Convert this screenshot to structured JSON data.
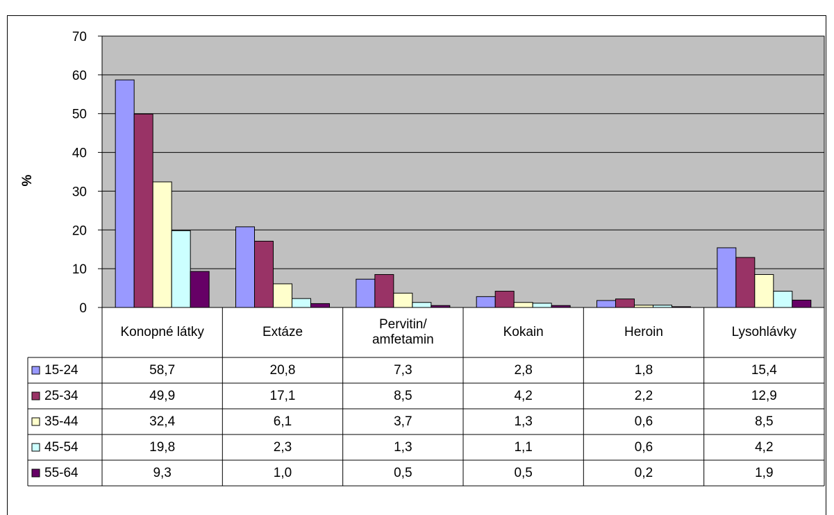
{
  "chart_data": {
    "type": "bar",
    "y_label": "%",
    "categories": [
      "Konopné látky",
      "Extáze",
      "Pervitin/\namfetamin",
      "Kokain",
      "Heroin",
      "Lysohlávky"
    ],
    "ylim": [
      0,
      70
    ],
    "yticks": [
      0,
      10,
      20,
      30,
      40,
      50,
      60,
      70
    ],
    "grid": true,
    "plot_background": "#c0c0c0",
    "series": [
      {
        "name": "15-24",
        "color": "#9999ff",
        "values": [
          58.7,
          20.8,
          7.3,
          2.8,
          1.8,
          15.4
        ],
        "value_labels": [
          "58,7",
          "20,8",
          "7,3",
          "2,8",
          "1,8",
          "15,4"
        ]
      },
      {
        "name": "25-34",
        "color": "#993366",
        "values": [
          49.9,
          17.1,
          8.5,
          4.2,
          2.2,
          12.9
        ],
        "value_labels": [
          "49,9",
          "17,1",
          "8,5",
          "4,2",
          "2,2",
          "12,9"
        ]
      },
      {
        "name": "35-44",
        "color": "#ffffcc",
        "values": [
          32.4,
          6.1,
          3.7,
          1.3,
          0.6,
          8.5
        ],
        "value_labels": [
          "32,4",
          "6,1",
          "3,7",
          "1,3",
          "0,6",
          "8,5"
        ]
      },
      {
        "name": "45-54",
        "color": "#ccffff",
        "values": [
          19.8,
          2.3,
          1.3,
          1.1,
          0.6,
          4.2
        ],
        "value_labels": [
          "19,8",
          "2,3",
          "1,3",
          "1,1",
          "0,6",
          "4,2"
        ]
      },
      {
        "name": "55-64",
        "color": "#660066",
        "values": [
          9.3,
          1.0,
          0.5,
          0.5,
          0.2,
          1.9
        ],
        "value_labels": [
          "9,3",
          "1,0",
          "0,5",
          "0,5",
          "0,2",
          "1,9"
        ]
      }
    ]
  }
}
